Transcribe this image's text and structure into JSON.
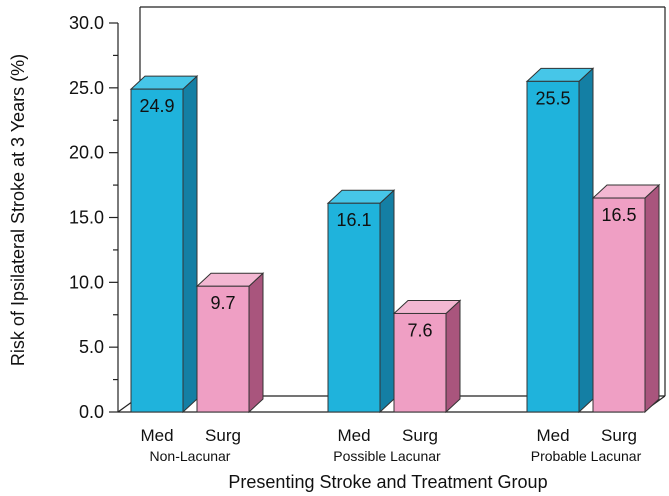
{
  "chart_data": {
    "type": "bar",
    "xlabel": "Presenting Stroke and Treatment Group",
    "ylabel": "Risk of Ipsilateral Stroke at 3 Years (%)",
    "ylim": [
      0,
      30
    ],
    "yticks": [
      "0.0",
      "5.0",
      "10.0",
      "15.0",
      "20.0",
      "25.0",
      "30.0"
    ],
    "grid": false,
    "groups": [
      {
        "name": "Non-Lacunar",
        "bars": [
          {
            "label": "Med",
            "value": 24.9,
            "value_label": "24.9"
          },
          {
            "label": "Surg",
            "value": 9.7,
            "value_label": "9.7"
          }
        ]
      },
      {
        "name": "Possible Lacunar",
        "bars": [
          {
            "label": "Med",
            "value": 16.1,
            "value_label": "16.1"
          },
          {
            "label": "Surg",
            "value": 7.6,
            "value_label": "7.6"
          }
        ]
      },
      {
        "name": "Probable Lacunar",
        "bars": [
          {
            "label": "Med",
            "value": 25.5,
            "value_label": "25.5"
          },
          {
            "label": "Surg",
            "value": 16.5,
            "value_label": "16.5"
          }
        ]
      }
    ],
    "colors": {
      "Med": {
        "front": "#1fb3dc",
        "side": "#147fa4",
        "top": "#46c6e8"
      },
      "Surg": {
        "front": "#ef9fc4",
        "side": "#a9557d",
        "top": "#f3b7d2"
      }
    }
  }
}
